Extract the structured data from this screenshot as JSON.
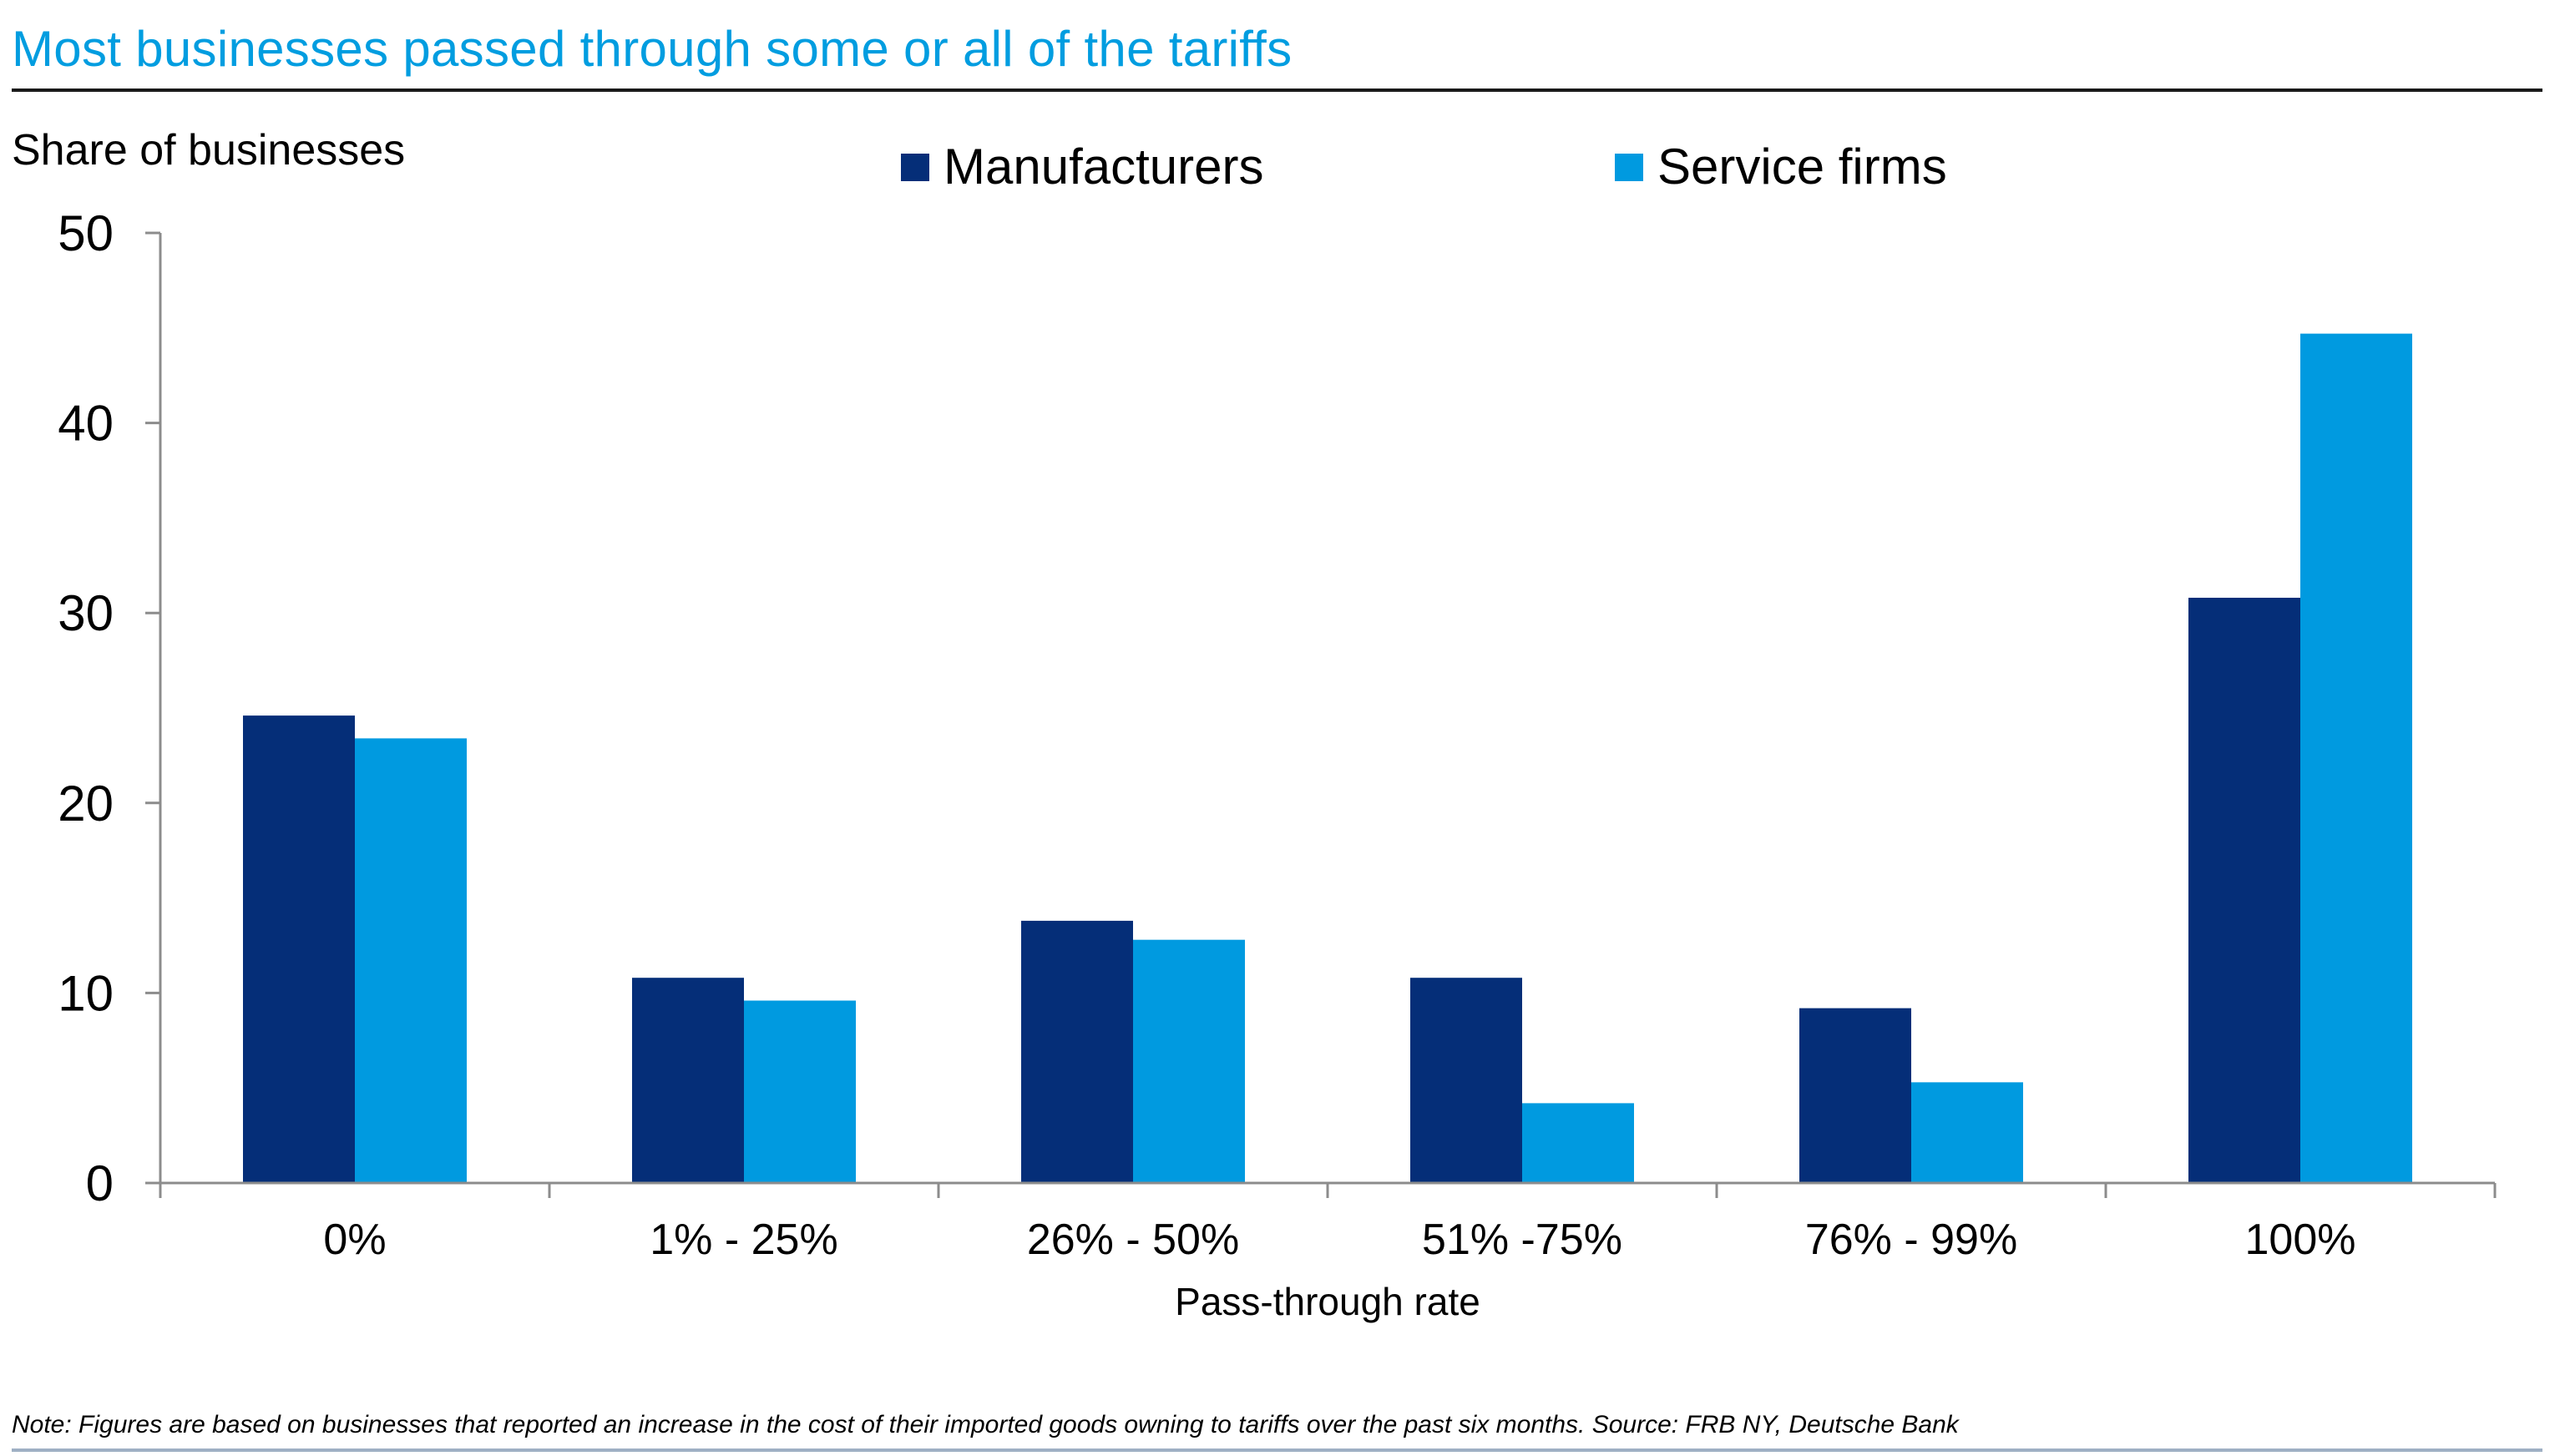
{
  "title": "Most businesses passed through some or all of the tariffs",
  "note": "Note: Figures are based on businesses that reported an increase in the cost of their imported goods owning to tariffs over the past six months. Source: FRB NY, Deutsche Bank",
  "colors": {
    "title": "#009de0",
    "manufacturers": "#052e78",
    "service_firms": "#009ae0",
    "axis": "#8c8c8c"
  },
  "chart_data": {
    "type": "bar",
    "title": "Most businesses passed through some or all of the tariffs",
    "xlabel": "Pass-through rate",
    "ylabel": "Share of businesses",
    "ylim": [
      0,
      50
    ],
    "yticks": [
      0,
      10,
      20,
      30,
      40,
      50
    ],
    "grid": false,
    "legend_position": "top-center",
    "categories": [
      "0%",
      "1% - 25%",
      "26% - 50%",
      "51% -75%",
      "76% - 99%",
      "100%"
    ],
    "series": [
      {
        "name": "Manufacturers",
        "color": "#052e78",
        "values": [
          24.6,
          10.8,
          13.8,
          10.8,
          9.2,
          30.8
        ]
      },
      {
        "name": "Service firms",
        "color": "#009ae0",
        "values": [
          23.4,
          9.6,
          12.8,
          4.2,
          5.3,
          44.7
        ]
      }
    ]
  }
}
